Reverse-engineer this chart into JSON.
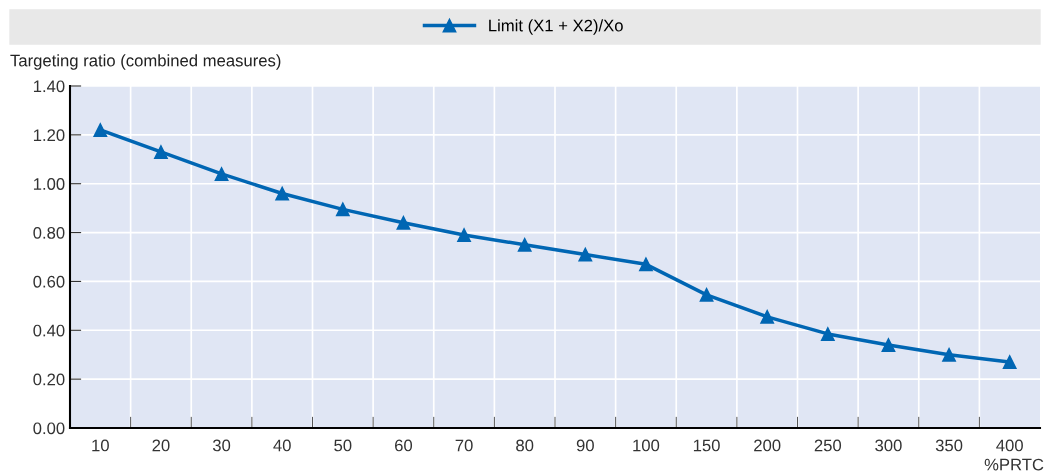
{
  "chart_data": {
    "type": "line",
    "ylabel": "Targeting ratio (combined measures)",
    "xlabel": "%PRTC",
    "categories": [
      "10",
      "20",
      "30",
      "40",
      "50",
      "60",
      "70",
      "80",
      "90",
      "100",
      "150",
      "200",
      "250",
      "300",
      "350",
      "400"
    ],
    "series": [
      {
        "name": "Limit (X1 + X2)/Xo",
        "color": "#0066b3",
        "values": [
          1.22,
          1.13,
          1.04,
          0.96,
          0.895,
          0.84,
          0.79,
          0.75,
          0.71,
          0.67,
          0.545,
          0.455,
          0.385,
          0.34,
          0.3,
          0.27
        ]
      }
    ],
    "ylim": [
      0,
      1.4
    ],
    "yticks": [
      {
        "value": 0,
        "label": "0.00"
      },
      {
        "value": 0.2,
        "label": "0.20"
      },
      {
        "value": 0.4,
        "label": "0.40"
      },
      {
        "value": 0.6,
        "label": "0.60"
      },
      {
        "value": 0.8,
        "label": "0.80"
      },
      {
        "value": 1.0,
        "label": "1.00"
      },
      {
        "value": 1.2,
        "label": "1.20"
      },
      {
        "value": 1.4,
        "label": "1.40"
      }
    ],
    "grid": true,
    "legend": "top",
    "marker": "triangle",
    "line_style": "solid"
  }
}
